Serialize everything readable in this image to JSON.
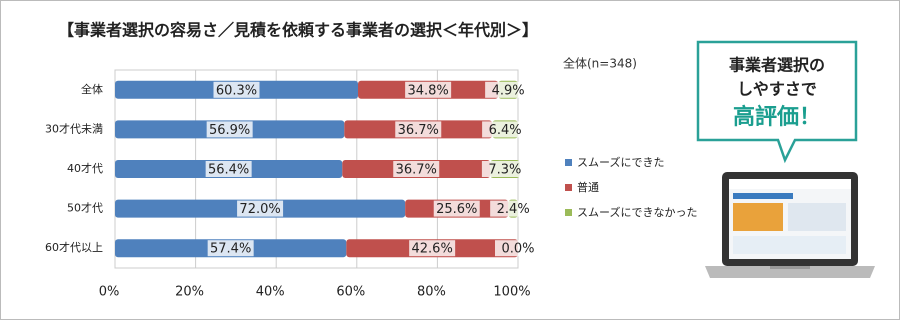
{
  "chart_data": {
    "type": "stacked_bar_horizontal",
    "title": "【事業者選択の容易さ／見積を依頼する事業者の選択＜年代別＞】",
    "note": "全体(n=348)",
    "categories": [
      "全体",
      "30才代未満",
      "40才代",
      "50才代",
      "60才代以上"
    ],
    "series": [
      {
        "name": "スムーズにできた",
        "color": "#4f81bd",
        "values": [
          60.3,
          56.9,
          56.4,
          72.0,
          57.4
        ],
        "value_labels": [
          "60.3%",
          "56.9%",
          "56.4%",
          "72.0%",
          "57.4%"
        ]
      },
      {
        "name": "普通",
        "color": "#c0504d",
        "values": [
          34.8,
          36.7,
          36.7,
          25.6,
          42.6
        ],
        "value_labels": [
          "34.8%",
          "36.7%",
          "36.7%",
          "25.6%",
          "42.6%"
        ]
      },
      {
        "name": "スムーズにできなかった",
        "color": "#9bbb59",
        "values": [
          4.9,
          6.4,
          7.3,
          2.4,
          0.0
        ],
        "value_labels": [
          "4.9%",
          "6.4%",
          "7.3%",
          "2.4%",
          "0.0%"
        ]
      }
    ],
    "xlim": [
      0,
      100
    ],
    "xticks": [
      {
        "value": 0,
        "label": "0%"
      },
      {
        "value": 20,
        "label": "20%"
      },
      {
        "value": 40,
        "label": "40%"
      },
      {
        "value": 60,
        "label": "60%"
      },
      {
        "value": 80,
        "label": "80%"
      },
      {
        "value": 100,
        "label": "100%"
      }
    ],
    "grid": true
  },
  "callout": {
    "lines": [
      "事業者選択の",
      "しやすさで"
    ],
    "highlight": "高評価！"
  }
}
